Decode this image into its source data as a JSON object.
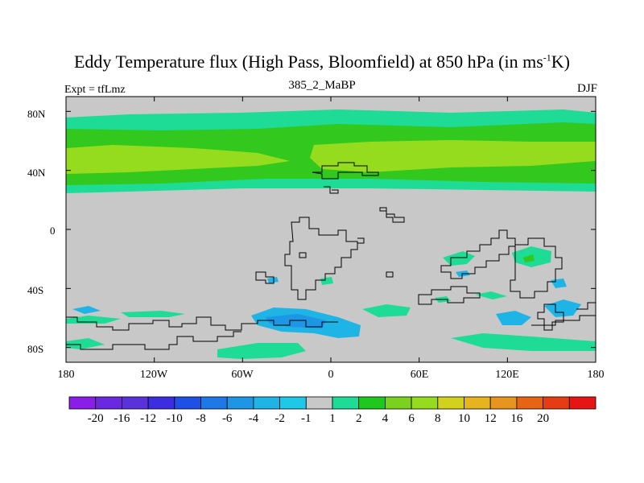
{
  "title": {
    "main": "Eddy Temperature flux (High Pass, Bloomfield) at 850 hPa (in ms",
    "exponent": "-1",
    "unit_tail": "K)"
  },
  "subtitle": "385_2_MaBP",
  "left_label": "Expt = tfLmz",
  "right_label": "DJF",
  "map": {
    "lat_range": [
      -90,
      90
    ],
    "lon_range": [
      -180,
      180
    ],
    "y_ticks": [
      {
        "label": "80N",
        "lat": 80
      },
      {
        "label": "40N",
        "lat": 40
      },
      {
        "label": "0",
        "lat": 0
      },
      {
        "label": "40S",
        "lat": -40
      },
      {
        "label": "80S",
        "lat": -80
      }
    ],
    "x_ticks": [
      {
        "label": "180",
        "lon": -180
      },
      {
        "label": "120W",
        "lon": -120
      },
      {
        "label": "60W",
        "lon": -60
      },
      {
        "label": "0",
        "lon": 0
      },
      {
        "label": "60E",
        "lon": 60
      },
      {
        "label": "120E",
        "lon": 120
      },
      {
        "label": "180",
        "lon": 180
      }
    ]
  },
  "colorbar": {
    "colors": [
      "#8a1ee6",
      "#6a28e0",
      "#5a32dc",
      "#3c2ee0",
      "#1e50e6",
      "#1e78e6",
      "#1e96e6",
      "#1eb4e6",
      "#1ec8e6",
      "#c8c8c8",
      "#1edc96",
      "#1ec81e",
      "#7ad21e",
      "#96dc1e",
      "#d2d21e",
      "#e6b41e",
      "#e6961e",
      "#e66414",
      "#e63c14",
      "#e61414"
    ],
    "labels": [
      "-20",
      "-16",
      "-12",
      "-10",
      "-8",
      "-6",
      "-4",
      "-2",
      "-1",
      "1",
      "2",
      "4",
      "6",
      "8",
      "10",
      "12",
      "16",
      "20"
    ]
  },
  "field_colors": {
    "land_missing": "#c8c8c8",
    "level_2": "#1edc96",
    "level_4": "#32c81e",
    "level_6": "#96dc1e",
    "neg_2": "#1eb4e6",
    "neg_4": "#1e96e6"
  }
}
